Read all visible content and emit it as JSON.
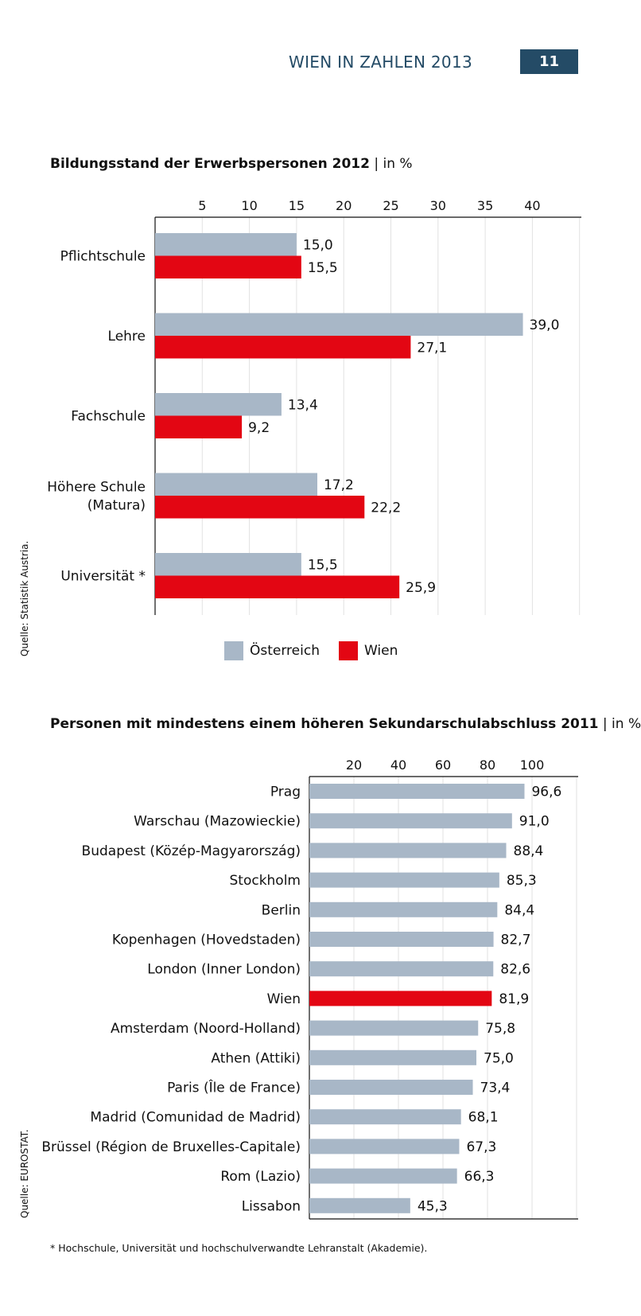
{
  "header": {
    "title": "WIEN IN ZAHLEN 2013",
    "page_number": "11"
  },
  "colors": {
    "austria": "#a8b7c7",
    "wien": "#e30613",
    "accent": "#244b66"
  },
  "chart1": {
    "title_bold": "Bildungsstand der Erwerbspersonen 2012",
    "title_suffix": " | in %",
    "source": "Quelle: Statistik Austria."
  },
  "chart2": {
    "title_bold": "Personen mit mindestens einem höheren Sekundarschulabschluss 2011",
    "title_suffix": " | in %",
    "source": "Quelle: EUROSTAT."
  },
  "legend": {
    "austria_label": "Österreich",
    "wien_label": "Wien"
  },
  "footnote": "* Hochschule, Universität und hochschulverwandte Lehranstalt (Akademie).",
  "chart_data": [
    {
      "type": "bar",
      "orientation": "horizontal",
      "title": "Bildungsstand der Erwerbspersonen 2012 | in %",
      "categories": [
        [
          "Pflichtschule"
        ],
        [
          "Lehre"
        ],
        [
          "Fachschule"
        ],
        [
          "Höhere Schule",
          "(Matura)"
        ],
        [
          "Universität *"
        ]
      ],
      "series": [
        {
          "name": "Österreich",
          "values": [
            15.0,
            39.0,
            13.4,
            17.2,
            15.5
          ],
          "labels": [
            "15,0",
            "39,0",
            "13,4",
            "17,2",
            "15,5"
          ]
        },
        {
          "name": "Wien",
          "values": [
            15.5,
            27.1,
            9.2,
            22.2,
            25.9
          ],
          "labels": [
            "15,5",
            "27,1",
            "9,2",
            "22,2",
            "25,9"
          ]
        }
      ],
      "xticks": [
        "5",
        "10",
        "15",
        "20",
        "25",
        "30",
        "35",
        "40"
      ],
      "xlim": [
        0,
        45
      ],
      "legend": "bottom"
    },
    {
      "type": "bar",
      "orientation": "horizontal",
      "title": "Personen mit mindestens einem höheren Sekundarschulabschluss 2011 | in %",
      "categories": [
        "Prag",
        "Warschau (Mazowieckie)",
        "Budapest (Közép-Magyarország)",
        "Stockholm",
        "Berlin",
        "Kopenhagen (Hovedstaden)",
        "London (Inner London)",
        "Wien",
        "Amsterdam (Noord-Holland)",
        "Athen (Attiki)",
        "Paris (Île de France)",
        "Madrid (Comunidad de Madrid)",
        "Brüssel (Région de Bruxelles-Capitale)",
        "Rom (Lazio)",
        "Lissabon"
      ],
      "values": [
        96.6,
        91.0,
        88.4,
        85.3,
        84.4,
        82.7,
        82.6,
        81.9,
        75.8,
        75.0,
        73.4,
        68.1,
        67.3,
        66.3,
        45.3
      ],
      "labels": [
        "96,6",
        "91,0",
        "88,4",
        "85,3",
        "84,4",
        "82,7",
        "82,6",
        "81,9",
        "75,8",
        "75,0",
        "73,4",
        "68,1",
        "67,3",
        "66,3",
        "45,3"
      ],
      "highlight": "Wien",
      "xticks": [
        "20",
        "40",
        "60",
        "80",
        "100"
      ],
      "xlim": [
        0,
        120
      ]
    }
  ]
}
